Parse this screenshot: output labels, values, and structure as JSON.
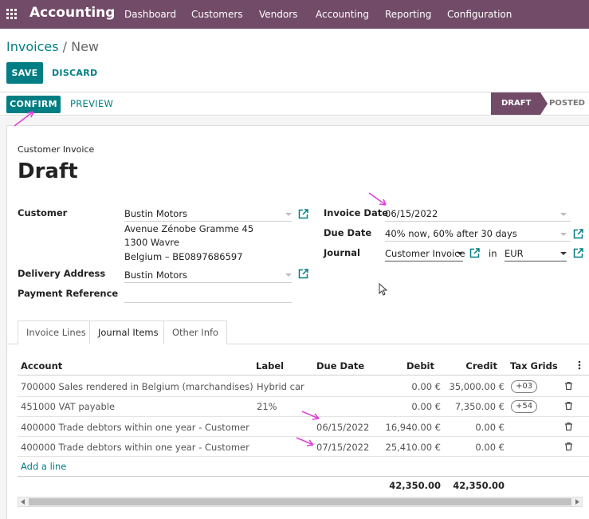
{
  "navbar": {
    "app_name": "Accounting",
    "menu": [
      "Dashboard",
      "Customers",
      "Vendors",
      "Accounting",
      "Reporting",
      "Configuration"
    ]
  },
  "breadcrumb": {
    "parent": "Invoices",
    "separator": " / ",
    "current": "New"
  },
  "buttons": {
    "save": "SAVE",
    "discard": "DISCARD",
    "confirm": "CONFIRM",
    "preview": "PREVIEW"
  },
  "statusbar": {
    "stages": [
      "DRAFT",
      "POSTED"
    ],
    "active": "DRAFT"
  },
  "form": {
    "move_type": "Customer Invoice",
    "name": "Draft",
    "customer": {
      "label": "Customer",
      "value": "Bustin Motors",
      "address": [
        "Avenue Zénobe Gramme 45",
        "1300 Wavre",
        "Belgium – BE0897686597"
      ]
    },
    "delivery_address": {
      "label": "Delivery Address",
      "value": "Bustin Motors"
    },
    "payment_reference": {
      "label": "Payment Reference",
      "value": ""
    },
    "invoice_date": {
      "label": "Invoice Date",
      "value": "06/15/2022"
    },
    "due_date": {
      "label": "Due Date",
      "value": "40% now, 60% after 30 days"
    },
    "journal": {
      "label": "Journal",
      "value": "Customer Invoice",
      "in": "in",
      "currency": "EUR"
    }
  },
  "tabs": [
    "Invoice Lines",
    "Journal Items",
    "Other Info"
  ],
  "journal_items": {
    "columns": [
      "Account",
      "Label",
      "Due Date",
      "Debit",
      "Credit",
      "Tax Grids"
    ],
    "rows": [
      {
        "account": "700000 Sales rendered in Belgium (marchandises)",
        "label": "Hybrid car",
        "due_date": "",
        "debit": "0.00 €",
        "credit": "35,000.00 €",
        "tax_grid": "+03"
      },
      {
        "account": "451000 VAT payable",
        "label": "21%",
        "due_date": "",
        "debit": "0.00 €",
        "credit": "7,350.00 €",
        "tax_grid": "+54"
      },
      {
        "account": "400000 Trade debtors within one year - Customer",
        "label": "",
        "due_date": "06/15/2022",
        "debit": "16,940.00 €",
        "credit": "0.00 €",
        "tax_grid": ""
      },
      {
        "account": "400000 Trade debtors within one year - Customer",
        "label": "",
        "due_date": "07/15/2022",
        "debit": "25,410.00 €",
        "credit": "0.00 €",
        "tax_grid": ""
      }
    ],
    "add_line": "Add a line",
    "total_debit": "42,350.00",
    "total_credit": "42,350.00"
  },
  "colors": {
    "brand": "#714b67",
    "accent": "#017e84",
    "annotation_arrow": "#e040d8"
  },
  "icons": [
    "apps-grid-icon",
    "external-link-icon",
    "dropdown-caret-icon",
    "trash-icon",
    "kebab-menu-icon",
    "annotation-arrow-icon",
    "mouse-cursor-icon"
  ]
}
